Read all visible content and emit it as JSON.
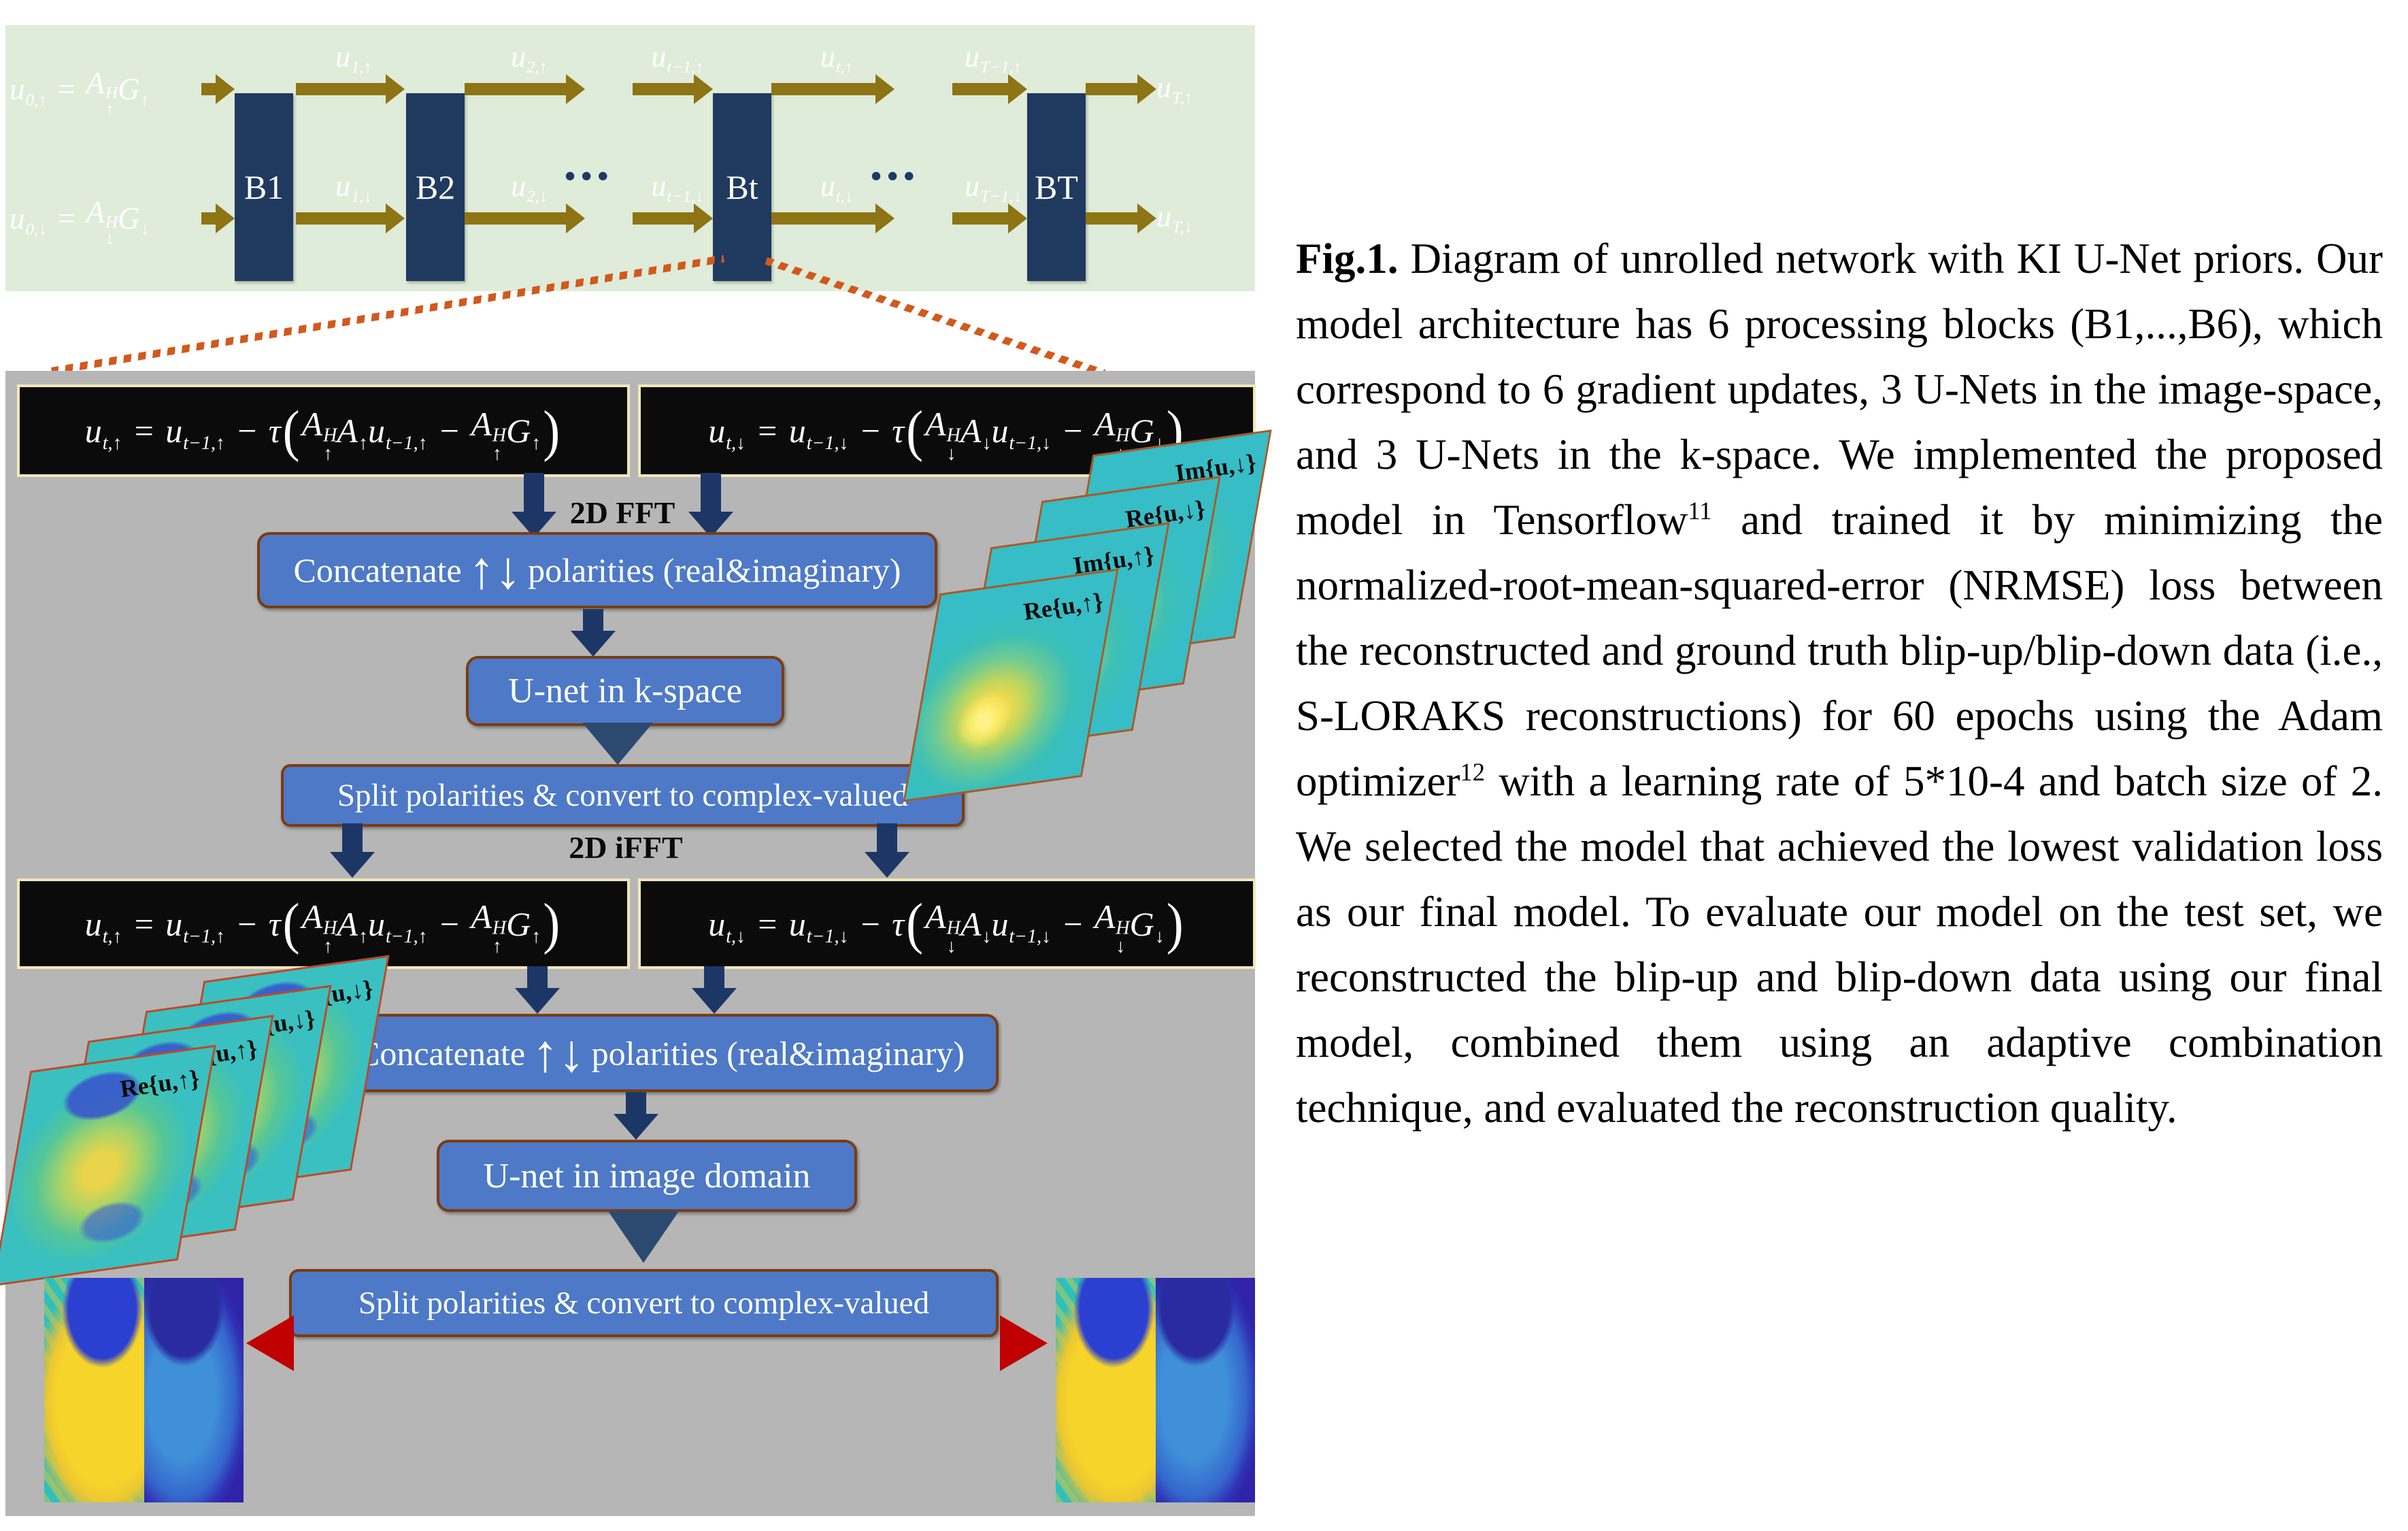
{
  "colors": {
    "green_bg": "#dfecd9",
    "gray_bg": "#b6b6b6",
    "navy": "#20395f",
    "olive": "#8d7414",
    "blue_box": "#4d79c7",
    "box_border": "#7c3c10",
    "eq_border": "#f2e7b7",
    "arrow_navy": "#1c3766",
    "tri_navy": "#2c4a70",
    "red": "#c00000",
    "dotted": "#d2591c"
  },
  "top_panel": {
    "blocks": [
      "B1",
      "B2",
      "Bt",
      "BT"
    ],
    "dots": "•••",
    "input_up": [
      {
        "m": "u",
        "sub": "0,↑"
      },
      {
        "m": "="
      },
      {
        "m": "A",
        "sup": "H",
        "sub": "↑"
      },
      {
        "m": "G",
        "sub": "↑"
      }
    ],
    "input_down": [
      {
        "m": "u",
        "sub": "0,↓"
      },
      {
        "m": "="
      },
      {
        "m": "A",
        "sup": "H",
        "sub": "↓"
      },
      {
        "m": "G",
        "sub": "↓"
      }
    ],
    "labels_up": [
      [
        {
          "m": "u",
          "sub": "1,↑"
        }
      ],
      [
        {
          "m": "u",
          "sub": "2,↑"
        }
      ],
      [
        {
          "m": "u",
          "sub": "t−1,↑"
        }
      ],
      [
        {
          "m": "u",
          "sub": "t,↑"
        }
      ],
      [
        {
          "m": "u",
          "sub": "T−1,↑"
        }
      ]
    ],
    "labels_down": [
      [
        {
          "m": "u",
          "sub": "1,↓"
        }
      ],
      [
        {
          "m": "u",
          "sub": "2,↓"
        }
      ],
      [
        {
          "m": "u",
          "sub": "t−1,↓"
        }
      ],
      [
        {
          "m": "u",
          "sub": "t,↓"
        }
      ],
      [
        {
          "m": "u",
          "sub": "T−1,↓"
        }
      ]
    ],
    "output_up": [
      {
        "m": "u",
        "sub": "T,↑"
      }
    ],
    "output_down": [
      {
        "m": "u",
        "sub": "T,↓"
      }
    ]
  },
  "detail_panel": {
    "eq_up": [
      {
        "m": "u",
        "sub": "t,↑"
      },
      {
        "m": "="
      },
      {
        "m": "u",
        "sub": "t−1,↑"
      },
      {
        "m": "−"
      },
      {
        "m": "τ"
      },
      {
        "p": "("
      },
      {
        "m": "A",
        "sup": "H",
        "sub": "↑"
      },
      {
        "m": "A",
        "sub": "↑"
      },
      {
        "m": "u",
        "sub": "t−1,↑"
      },
      {
        "m": "−"
      },
      {
        "m": "A",
        "sup": "H",
        "sub": "↑"
      },
      {
        "m": "G",
        "sub": "↑"
      },
      {
        "p": ")"
      }
    ],
    "eq_down": [
      {
        "m": "u",
        "sub": "t,↓"
      },
      {
        "m": "="
      },
      {
        "m": "u",
        "sub": "t−1,↓"
      },
      {
        "m": "−"
      },
      {
        "m": "τ"
      },
      {
        "p": "("
      },
      {
        "m": "A",
        "sup": "H",
        "sub": "↓"
      },
      {
        "m": "A",
        "sub": "↓"
      },
      {
        "m": "u",
        "sub": "t−1,↓"
      },
      {
        "m": "−"
      },
      {
        "m": "A",
        "sup": "H",
        "sub": "↓"
      },
      {
        "m": "G",
        "sub": "↓"
      },
      {
        "p": ")"
      }
    ],
    "fft_label": "2D FFT",
    "ifft_label": "2D iFFT",
    "concat": {
      "pre": "Concatenate",
      "arrows": "↑↓",
      "post": "polarities (real&imaginary)"
    },
    "unet_k_label": "U-net in k-space",
    "unet_img_label": "U-net in image domain",
    "split_label": "Split polarities & convert to complex-valued",
    "kspace_stack": [
      "Re{u,↑}",
      "Im{u,↑}",
      "Re{u,↓}",
      "Im{u,↓}"
    ],
    "image_stack": [
      "Re{u,↑}",
      "Im{u,↑}",
      "Re{u,↓}",
      "Im{u,↓}"
    ]
  },
  "caption": {
    "segments": [
      {
        "b": "Fig.1."
      },
      {
        "t": " Diagram of unrolled network with KI U-Net priors. Our model architecture has 6 processing blocks (B1,...,B6), which correspond to 6 gradient updates, 3 U-Nets in the image-space, and 3 U-Nets in the k-space. We implemented the proposed model in Tensorflow"
      },
      {
        "sup": "11"
      },
      {
        "t": " and trained it by minimizing the normalized-root-mean-squared-error (NRMSE) loss between the reconstructed and ground truth blip-up/blip-down data (i.e., S-LORAKS reconstructions) for 60 epochs using the Adam optimizer"
      },
      {
        "sup": "12"
      },
      {
        "t": " with a learning rate of 5*10-4 and batch size of 2. We selected the model that achieved the lowest validation loss as our final model. To evaluate our model on the test set, we reconstructed the blip-up and blip-down data using our final model, combined them using an adaptive combination technique, and evaluated the reconstruction quality."
      }
    ]
  }
}
